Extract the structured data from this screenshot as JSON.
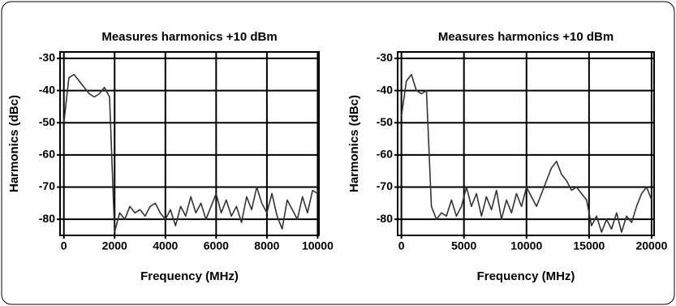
{
  "chart_data": [
    {
      "type": "line",
      "title": "Measures harmonics +10 dBm",
      "xlabel": "Frequency (MHz)",
      "ylabel": "Harmonics (dBc)",
      "xlim": [
        -150,
        10050
      ],
      "ylim": [
        -85,
        -28
      ],
      "xticks": [
        0,
        2000,
        4000,
        6000,
        8000,
        10000
      ],
      "yticks": [
        -30,
        -40,
        -50,
        -60,
        -70,
        -80
      ],
      "grid": true,
      "x": [
        0,
        200,
        400,
        600,
        800,
        1000,
        1200,
        1400,
        1600,
        1800,
        2000,
        2200,
        2400,
        2600,
        2800,
        3000,
        3200,
        3400,
        3600,
        3800,
        4000,
        4200,
        4400,
        4600,
        4800,
        5000,
        5200,
        5400,
        5600,
        5800,
        6000,
        6200,
        6400,
        6600,
        6800,
        7000,
        7200,
        7400,
        7600,
        7800,
        8000,
        8200,
        8400,
        8600,
        8800,
        9000,
        9200,
        9400,
        9600,
        9800,
        10000
      ],
      "series": [
        {
          "color": "#333333",
          "values": [
            -50,
            -36,
            -35,
            -37,
            -39,
            -41,
            -42,
            -41,
            -39,
            -42,
            -84,
            -78,
            -80,
            -76,
            -78,
            -77,
            -79,
            -76,
            -75,
            -78,
            -80,
            -77,
            -82,
            -76,
            -79,
            -73,
            -78,
            -75,
            -80,
            -76,
            -72,
            -78,
            -74,
            -79,
            -76,
            -81,
            -73,
            -77,
            -70,
            -75,
            -78,
            -72,
            -79,
            -83,
            -74,
            -77,
            -80,
            -73,
            -78,
            -71,
            -72
          ]
        }
      ]
    },
    {
      "type": "line",
      "title": "Measures harmonics +10 dBm",
      "xlabel": "Frequency (MHz)",
      "ylabel": "Harmonics (dBc)",
      "xlim": [
        -300,
        20200
      ],
      "ylim": [
        -85,
        -28
      ],
      "xticks": [
        0,
        5000,
        10000,
        15000,
        20000
      ],
      "yticks": [
        -30,
        -40,
        -50,
        -60,
        -70,
        -80
      ],
      "grid": true,
      "x": [
        0,
        400,
        800,
        1200,
        1600,
        2000,
        2400,
        2800,
        3200,
        3600,
        4000,
        4400,
        4800,
        5200,
        5600,
        6000,
        6400,
        6800,
        7200,
        7600,
        8000,
        8400,
        8800,
        9200,
        9600,
        10000,
        10400,
        10800,
        11200,
        11600,
        12000,
        12400,
        12800,
        13200,
        13600,
        14000,
        14400,
        14800,
        15200,
        15600,
        16000,
        16400,
        16800,
        17200,
        17600,
        18000,
        18400,
        18800,
        19200,
        19600,
        20000
      ],
      "series": [
        {
          "color": "#333333",
          "values": [
            -48,
            -37,
            -35,
            -40,
            -41,
            -40,
            -76,
            -80,
            -78,
            -79,
            -74,
            -79,
            -76,
            -70,
            -76,
            -72,
            -79,
            -73,
            -77,
            -71,
            -80,
            -74,
            -78,
            -72,
            -76,
            -70,
            -73,
            -76,
            -72,
            -68,
            -64,
            -62,
            -66,
            -68,
            -71,
            -70,
            -72,
            -74,
            -82,
            -79,
            -84,
            -80,
            -83,
            -78,
            -84,
            -79,
            -81,
            -76,
            -72,
            -70,
            -74
          ]
        }
      ]
    }
  ]
}
